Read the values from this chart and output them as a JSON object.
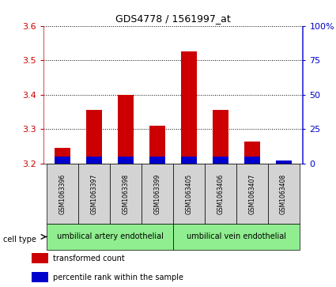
{
  "title": "GDS4778 / 1561997_at",
  "samples": [
    "GSM1063396",
    "GSM1063397",
    "GSM1063398",
    "GSM1063399",
    "GSM1063405",
    "GSM1063406",
    "GSM1063407",
    "GSM1063408"
  ],
  "transformed_count": [
    3.245,
    3.355,
    3.4,
    3.31,
    3.525,
    3.355,
    3.265,
    3.21
  ],
  "percentile_rank": [
    5.0,
    5.0,
    5.0,
    5.0,
    5.0,
    5.0,
    5.0,
    2.5
  ],
  "y_min": 3.2,
  "y_max": 3.6,
  "y_ticks": [
    3.2,
    3.3,
    3.4,
    3.5,
    3.6
  ],
  "y2_ticks": [
    0,
    25,
    50,
    75,
    100
  ],
  "y2_tick_labels": [
    "0",
    "25",
    "50",
    "75",
    "100%"
  ],
  "bar_width": 0.5,
  "red_color": "#cc0000",
  "blue_color": "#0000cc",
  "cell_type_groups": [
    {
      "label": "umbilical artery endothelial",
      "start": 0,
      "end": 3,
      "color": "#90ee90"
    },
    {
      "label": "umbilical vein endothelial",
      "start": 4,
      "end": 7,
      "color": "#90ee90"
    }
  ],
  "cell_type_label": "cell type",
  "legend_items": [
    {
      "color": "#cc0000",
      "label": "transformed count"
    },
    {
      "color": "#0000cc",
      "label": "percentile rank within the sample"
    }
  ],
  "tick_color_left": "#cc0000",
  "tick_color_right": "#0000cc",
  "bg_color_plot": "#ffffff",
  "bg_color_sample": "#d3d3d3"
}
